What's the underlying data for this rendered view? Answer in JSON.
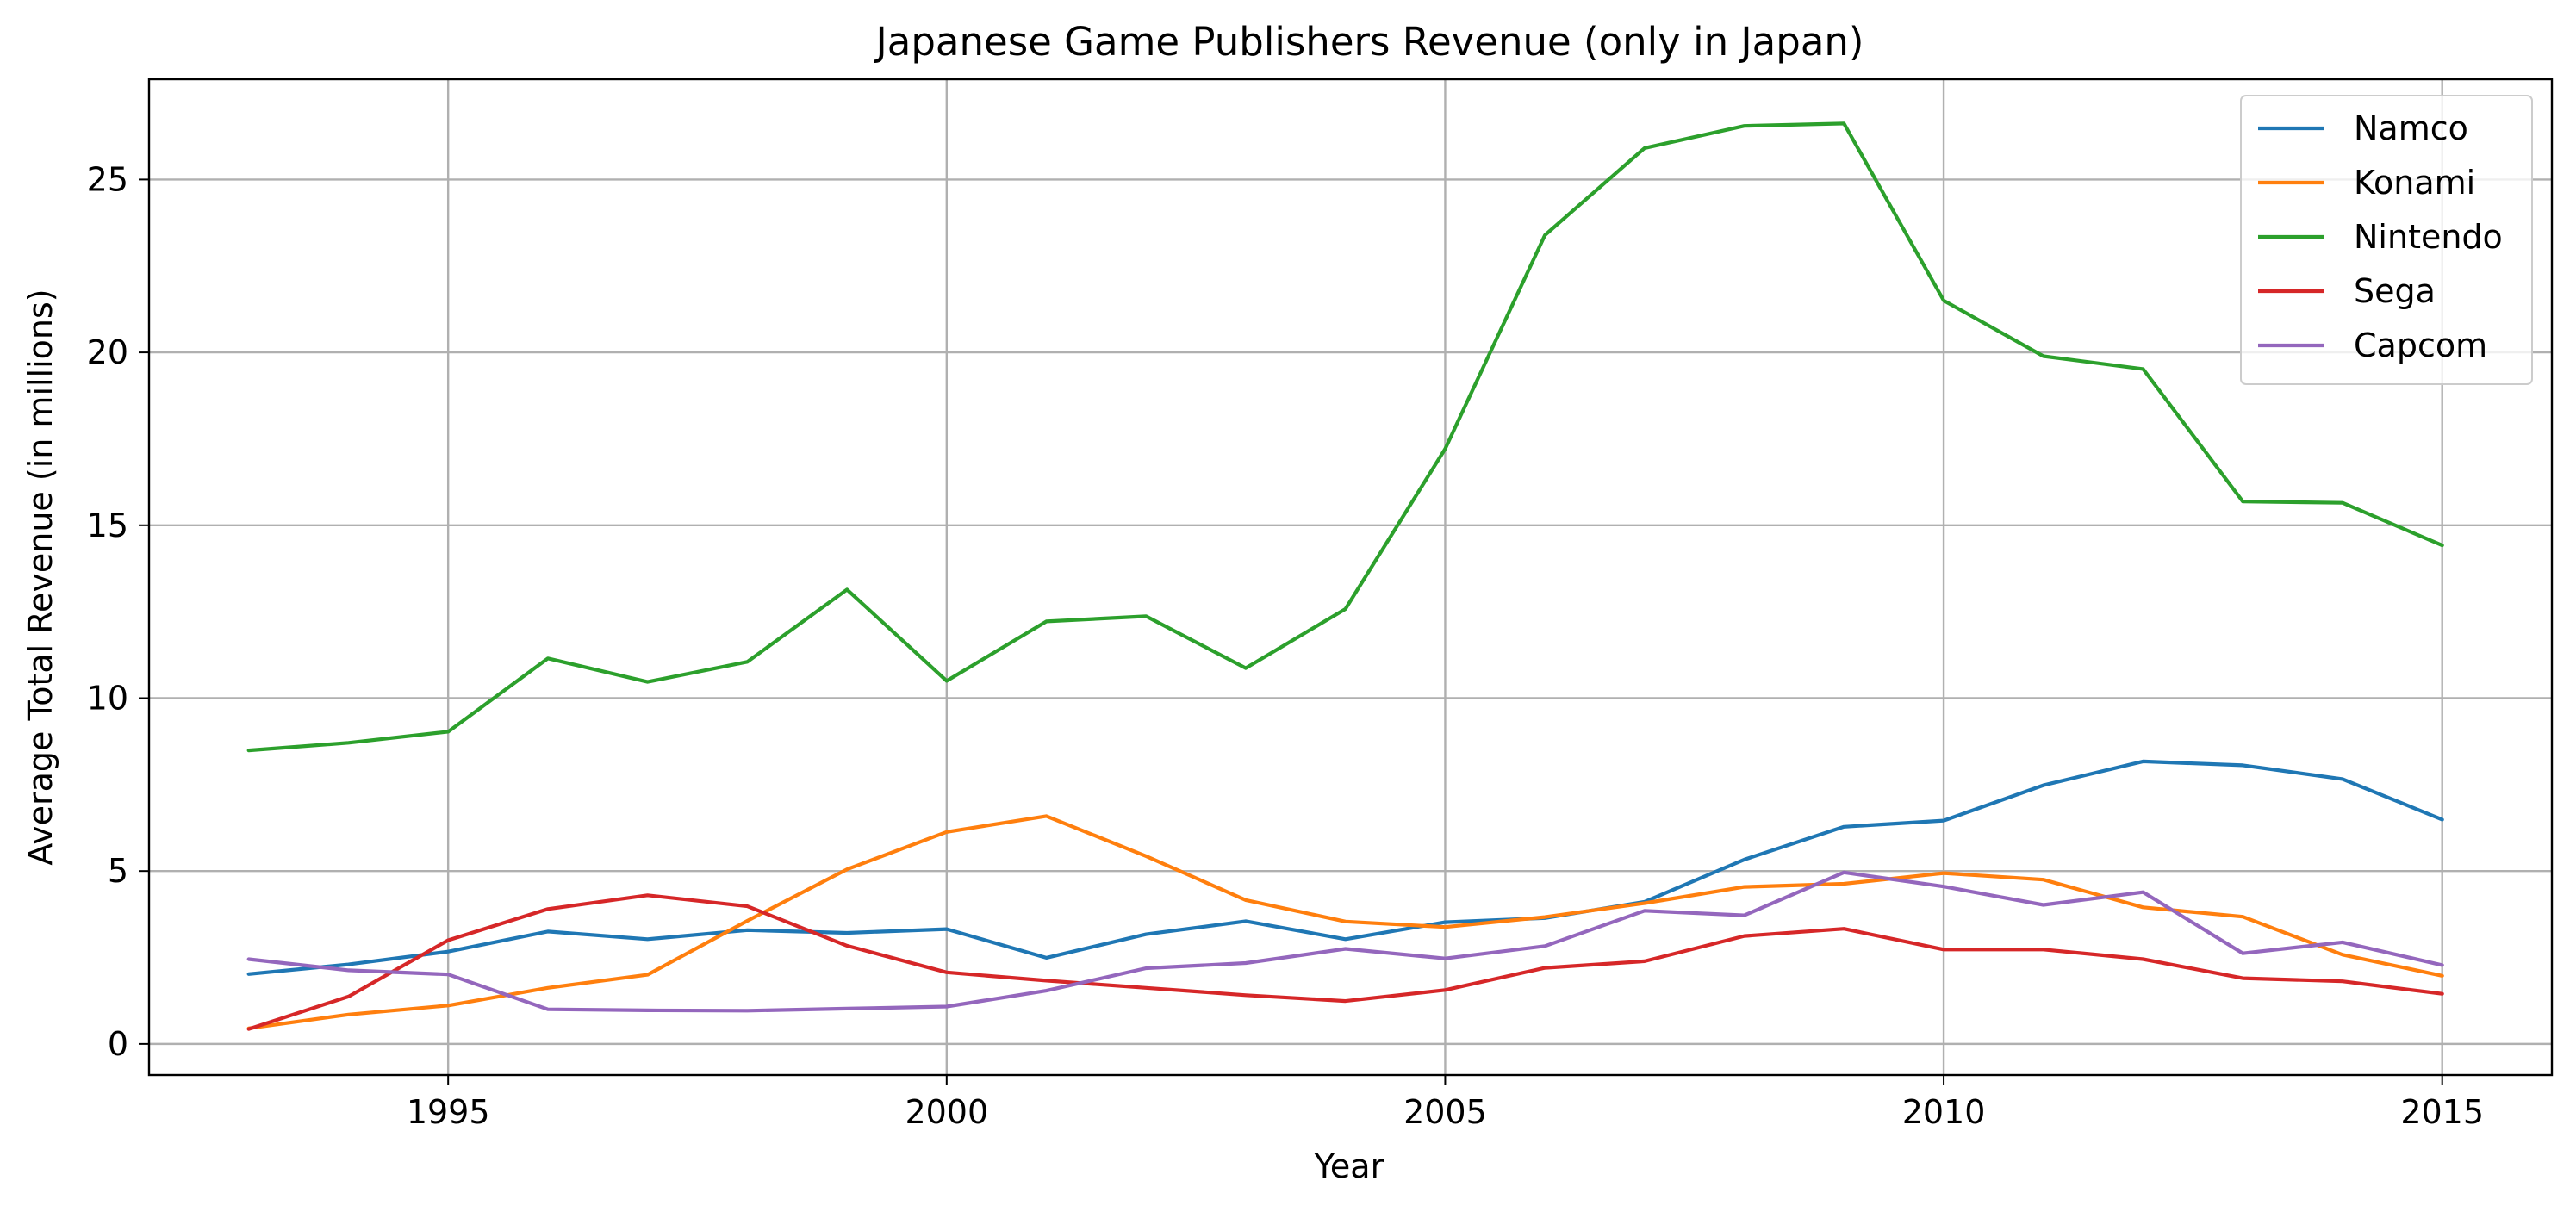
{
  "chart_data": {
    "type": "line",
    "title": "Japanese Game Publishers Revenue (only in Japan)",
    "xlabel": "Year",
    "ylabel": "Average Total Revenue (in millions)",
    "xlim": [
      1992.0,
      2016.1
    ],
    "ylim": [
      -0.9,
      27.9
    ],
    "xticks": [
      1995,
      2000,
      2005,
      2010,
      2015
    ],
    "yticks": [
      0,
      5,
      10,
      15,
      20,
      25
    ],
    "grid": true,
    "legend_position": "upper right",
    "x": [
      1993,
      1994,
      1995,
      1996,
      1997,
      1998,
      1999,
      2000,
      2001,
      2002,
      2003,
      2004,
      2005,
      2006,
      2007,
      2008,
      2009,
      2010,
      2011,
      2012,
      2013,
      2014,
      2015
    ],
    "series": [
      {
        "name": "Namco",
        "color": "#1f77b4",
        "values": [
          2.02,
          2.3,
          2.67,
          3.25,
          3.03,
          3.29,
          3.21,
          3.32,
          2.49,
          3.17,
          3.55,
          3.03,
          3.52,
          3.64,
          4.11,
          5.33,
          6.28,
          6.46,
          7.48,
          8.17,
          8.06,
          7.66,
          6.49
        ]
      },
      {
        "name": "Konami",
        "color": "#ff7f0e",
        "values": [
          0.45,
          0.85,
          1.11,
          1.62,
          2.0,
          3.56,
          5.05,
          6.13,
          6.59,
          5.43,
          4.16,
          3.54,
          3.38,
          3.67,
          4.07,
          4.54,
          4.63,
          4.94,
          4.75,
          3.95,
          3.68,
          2.58,
          1.97
        ]
      },
      {
        "name": "Nintendo",
        "color": "#2ca02c",
        "values": [
          8.49,
          8.71,
          9.03,
          11.15,
          10.47,
          11.05,
          13.14,
          10.5,
          12.22,
          12.37,
          10.87,
          12.58,
          17.21,
          23.39,
          25.91,
          26.55,
          26.62,
          21.5,
          19.89,
          19.52,
          15.69,
          15.65,
          14.42
        ]
      },
      {
        "name": "Sega",
        "color": "#d62728",
        "values": [
          0.43,
          1.37,
          3.0,
          3.9,
          4.3,
          3.98,
          2.84,
          2.07,
          1.83,
          1.62,
          1.41,
          1.24,
          1.56,
          2.2,
          2.39,
          3.12,
          3.33,
          2.73,
          2.73,
          2.45,
          1.9,
          1.81,
          1.45
        ]
      },
      {
        "name": "Capcom",
        "color": "#9467bd",
        "values": [
          2.45,
          2.13,
          2.01,
          1.0,
          0.97,
          0.96,
          1.02,
          1.08,
          1.54,
          2.19,
          2.34,
          2.75,
          2.47,
          2.83,
          3.85,
          3.72,
          4.96,
          4.55,
          4.02,
          4.39,
          2.62,
          2.94,
          2.28
        ]
      }
    ]
  }
}
